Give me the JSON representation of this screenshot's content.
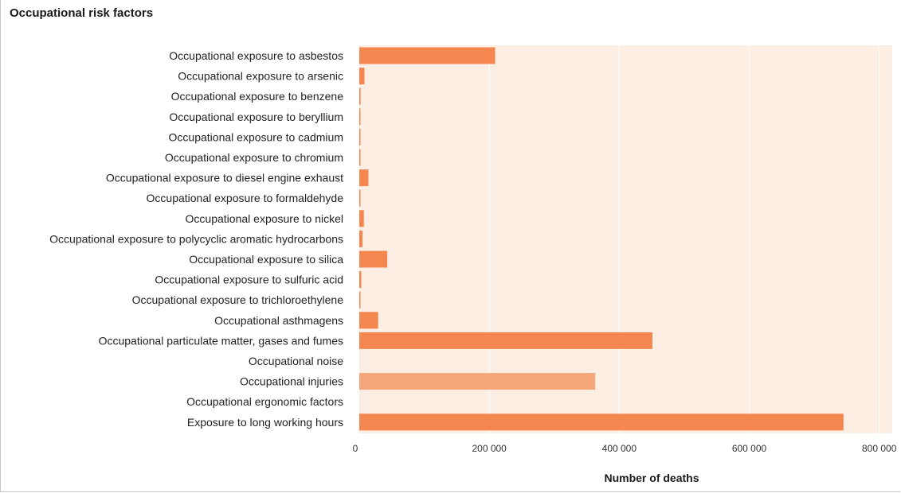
{
  "chart_data": {
    "type": "bar",
    "orientation": "horizontal",
    "title": "Occupational risk factors",
    "xlabel": "Number of deaths",
    "ylabel": "",
    "xlim": [
      0,
      820000
    ],
    "x_ticks": [
      0,
      200000,
      400000,
      600000,
      800000
    ],
    "x_tick_labels": [
      "0",
      "200 000",
      "400 000",
      "600 000",
      "800 000"
    ],
    "grid": true,
    "legend": "none",
    "colors": {
      "primary": "#F4874F",
      "highlight": "#F5A77C",
      "plot_bg": "#FDEEE4",
      "grid": "#FFFFFF"
    },
    "categories": [
      "Occupational exposure to asbestos",
      "Occupational exposure to arsenic",
      "Occupational exposure to benzene",
      "Occupational exposure to beryllium",
      "Occupational exposure to cadmium",
      "Occupational exposure to chromium",
      "Occupational exposure to diesel engine exhaust",
      "Occupational exposure to formaldehyde",
      "Occupational exposure to nickel",
      "Occupational exposure to polycyclic aromatic hydrocarbons",
      "Occupational exposure to silica",
      "Occupational exposure to sulfuric acid",
      "Occupational exposure to trichloroethylene",
      "Occupational asthmagens",
      "Occupational particulate matter, gases and fumes",
      "Occupational noise",
      "Occupational injuries",
      "Occupational ergonomic factors",
      "Exposure to long working hours"
    ],
    "values": [
      209000,
      8000,
      2000,
      500,
      1000,
      1200,
      14000,
      1500,
      7000,
      5000,
      43000,
      3000,
      500,
      29000,
      451000,
      0,
      363000,
      0,
      745000
    ],
    "highlight_index": 16
  }
}
